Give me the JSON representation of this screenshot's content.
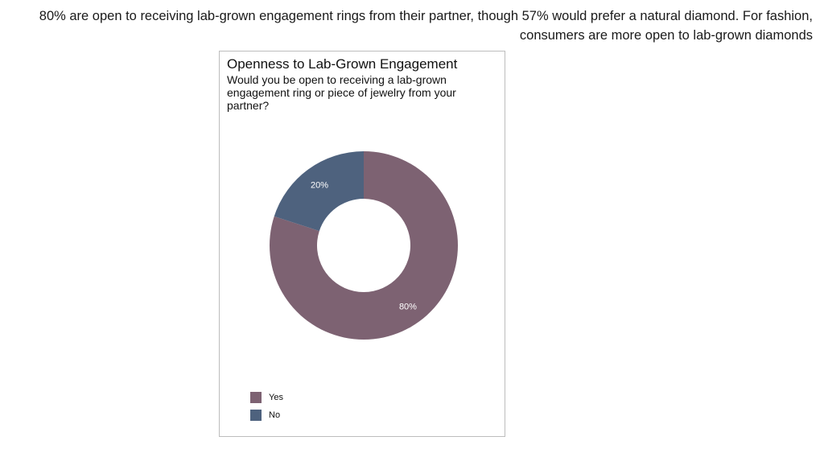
{
  "headline": "80% are open to receiving lab-grown engagement rings from their partner, though 57% would prefer a natural diamond. For fashion, consumers are more open to lab-grown diamonds",
  "chart_data": {
    "type": "pie",
    "variant": "donut",
    "title": "Openness to Lab-Grown Engagement",
    "subtitle": "Would you be open to receiving a lab-grown engagement ring or piece of jewelry from your partner?",
    "categories": [
      "Yes",
      "No"
    ],
    "values": [
      80,
      20
    ],
    "data_labels": [
      "80%",
      "20%"
    ],
    "colors": [
      "#7d6272",
      "#4e627e"
    ],
    "legend_placement": "bottom-left"
  }
}
